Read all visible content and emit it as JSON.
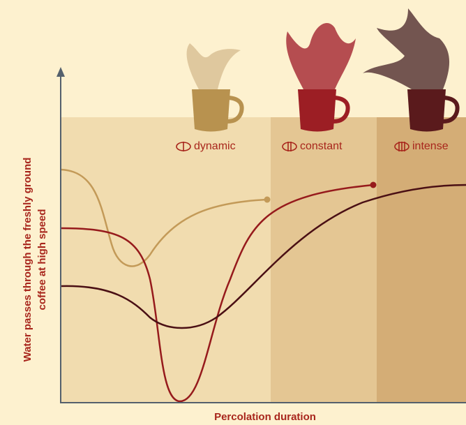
{
  "zones": [
    {
      "label": "dynamic"
    },
    {
      "label": "constant"
    },
    {
      "label": "intense"
    }
  ],
  "axes": {
    "y_label": [
      "Water passes through the freshly ground",
      "coffee at high speed"
    ],
    "x_label": "Percolation duration"
  }
}
